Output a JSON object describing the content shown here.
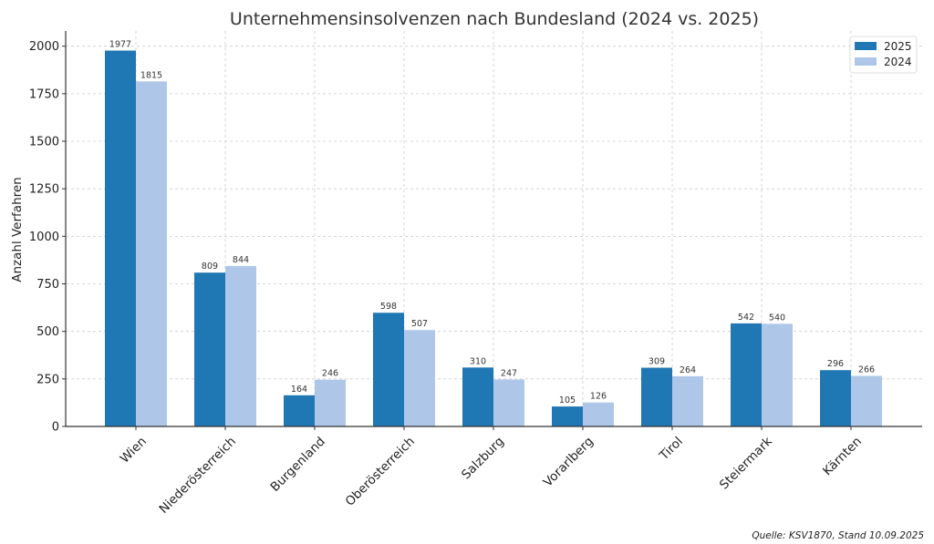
{
  "chart_data": {
    "type": "bar",
    "title": "Unternehmensinsolvenzen nach Bundesland (2024 vs. 2025)",
    "xlabel": "",
    "ylabel": "Anzahl Verfahren",
    "categories": [
      "Wien",
      "Niederösterreich",
      "Burgenland",
      "Oberösterreich",
      "Salzburg",
      "Vorarlberg",
      "Tirol",
      "Steiermark",
      "Kärnten"
    ],
    "series": [
      {
        "name": "2025",
        "color": "#1f77b4",
        "values": [
          1977,
          809,
          164,
          598,
          310,
          105,
          309,
          542,
          296
        ]
      },
      {
        "name": "2024",
        "color": "#aec7e8",
        "values": [
          1815,
          844,
          246,
          507,
          247,
          126,
          264,
          540,
          266
        ]
      }
    ],
    "ylim": [
      0,
      2080
    ],
    "yticks": [
      0,
      250,
      500,
      750,
      1000,
      1250,
      1500,
      1750,
      2000
    ],
    "grid": true,
    "legend_position": "top-right",
    "data_labels": true
  },
  "source_note": "Quelle: KSV1870, Stand 10.09.2025"
}
